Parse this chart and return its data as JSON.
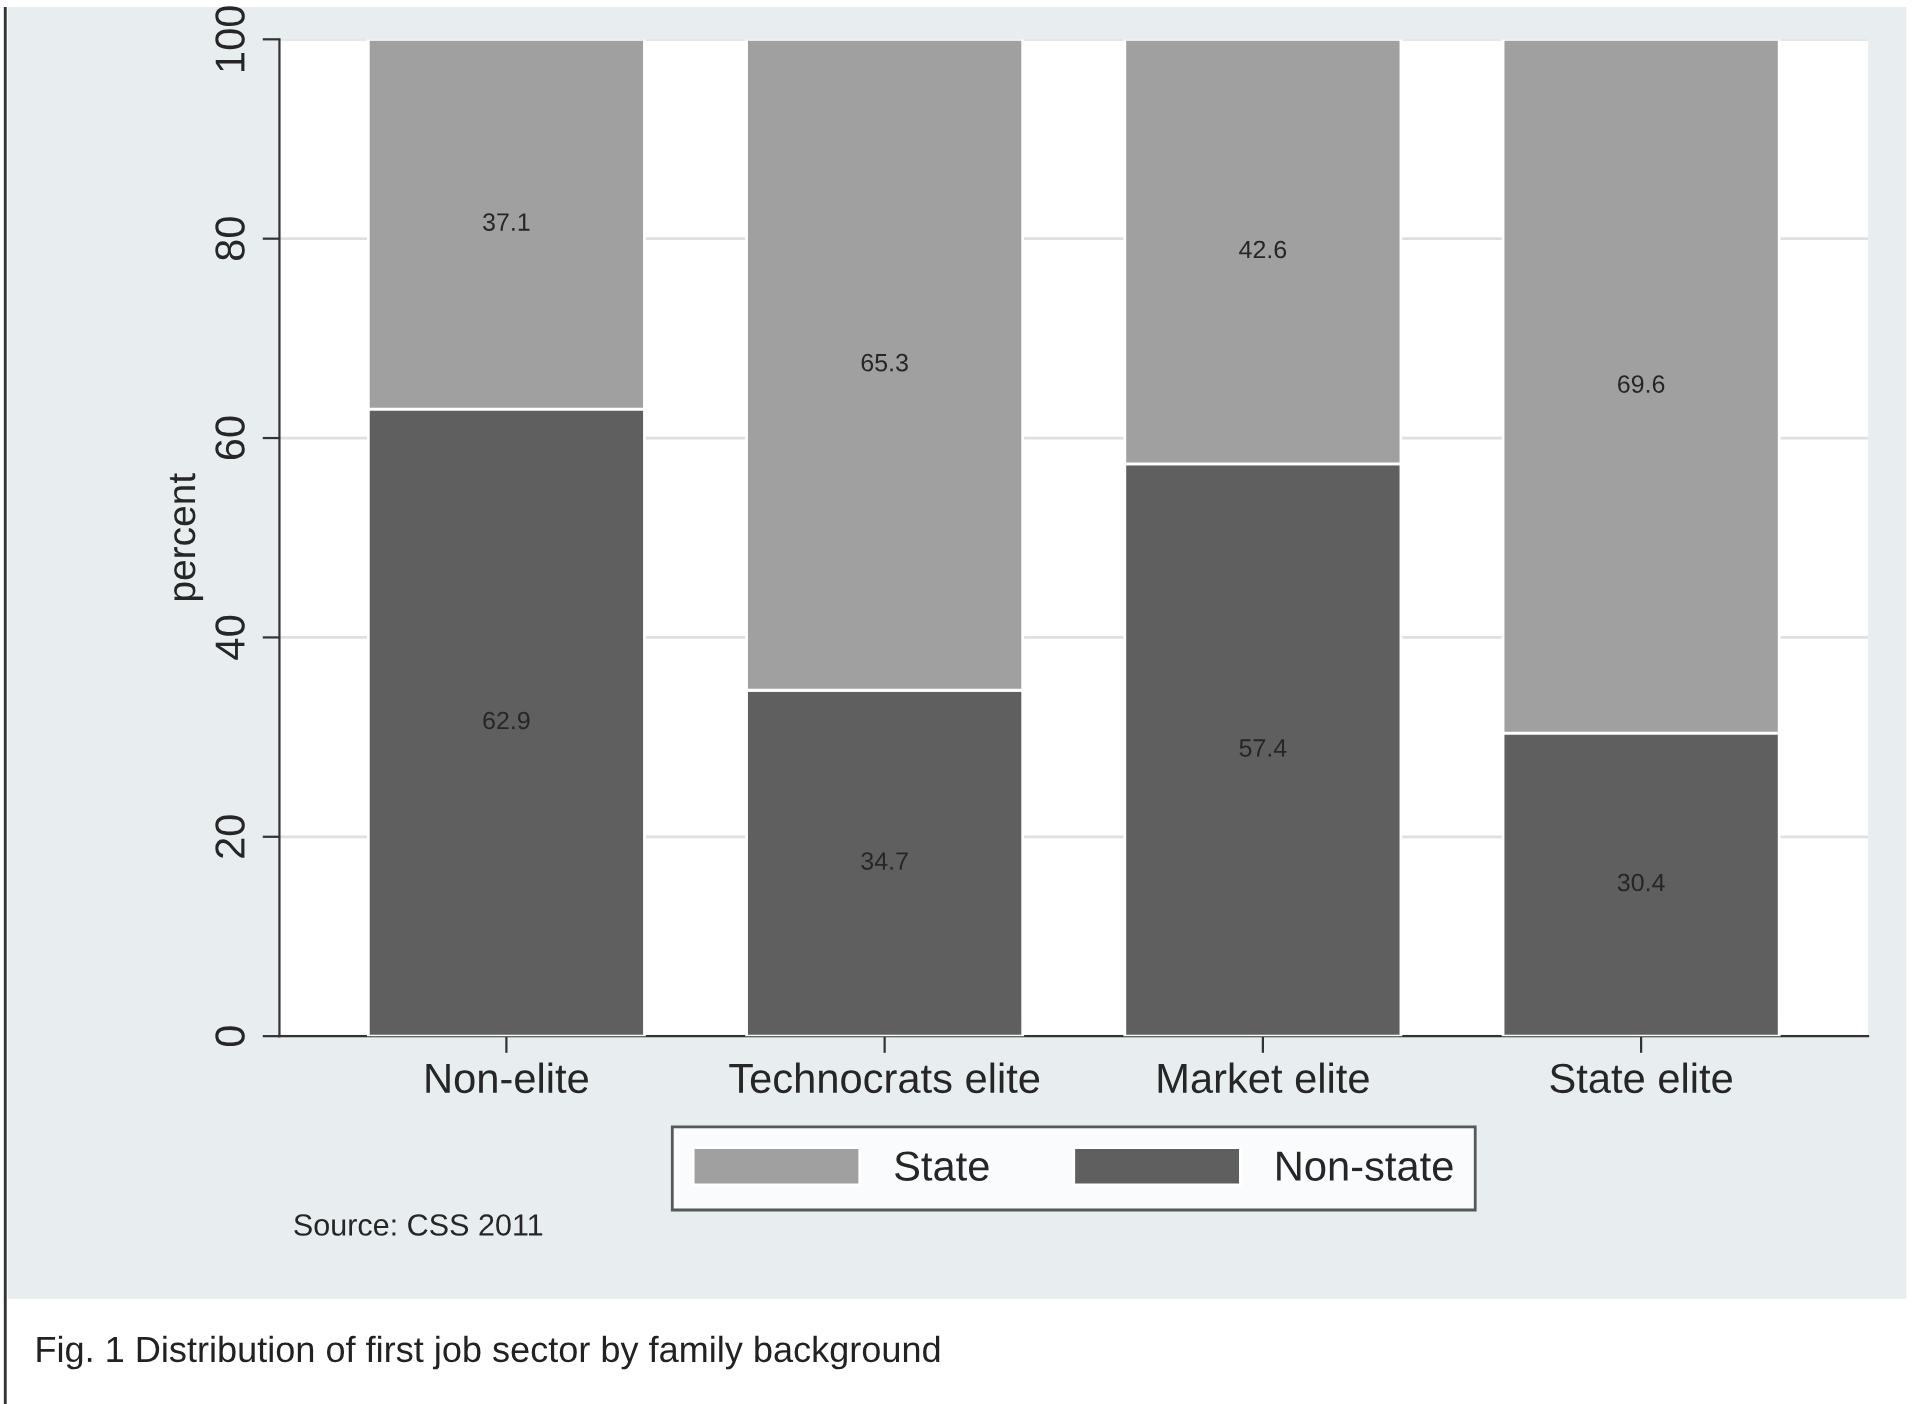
{
  "chart_data": {
    "type": "bar",
    "stacked": true,
    "title": "Fig. 1 Distribution of first job sector by family background",
    "categories": [
      "Non-elite",
      "Technocrats elite",
      "Market elite",
      "State elite"
    ],
    "series": [
      {
        "name": "Non-state",
        "color": "#5f5f5f",
        "values": [
          62.9,
          34.7,
          57.4,
          30.4
        ]
      },
      {
        "name": "State",
        "color": "#a0a0a0",
        "values": [
          37.1,
          65.3,
          42.6,
          69.6
        ]
      }
    ],
    "ylabel": "percent",
    "ylim": [
      0,
      100
    ],
    "yticks": [
      0,
      20,
      40,
      60,
      80,
      100
    ],
    "grid": "y",
    "legend": "bottom",
    "data_labels": true,
    "annotations": [
      "Source: CSS 2011"
    ]
  }
}
